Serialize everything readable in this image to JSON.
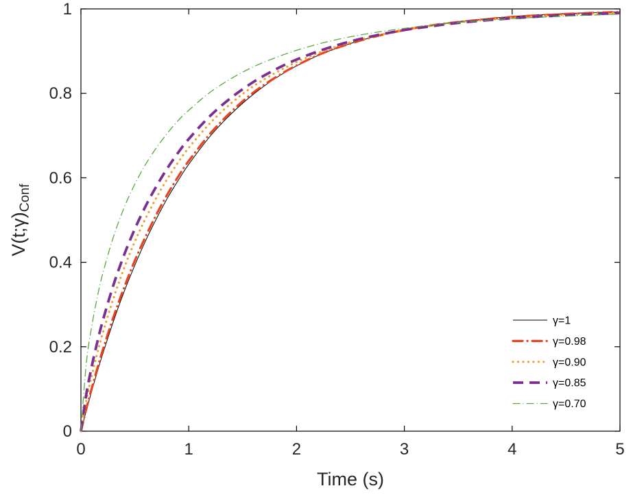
{
  "figure": {
    "background": "#ffffff",
    "xlabel": "Time (s)",
    "ylabel_main": "V(t;γ)",
    "ylabel_sub": "Conf",
    "x_tick_labels": [
      "0",
      "1",
      "2",
      "3",
      "4",
      "5"
    ],
    "y_tick_labels": [
      "0",
      "0.2",
      "0.4",
      "0.6",
      "0.8",
      "1"
    ],
    "axis_color": "#000000",
    "tick_text_color": "#262626"
  },
  "chart_data": {
    "type": "line",
    "title": "",
    "xlabel": "Time (s)",
    "ylabel": "V(t;γ)_Conf",
    "xlim": [
      0,
      5
    ],
    "ylim": [
      0,
      1
    ],
    "x_ticks": [
      0,
      1,
      2,
      3,
      4,
      5
    ],
    "y_ticks": [
      0,
      0.2,
      0.4,
      0.6,
      0.8,
      1
    ],
    "grid": false,
    "legend_position": "bottom-right",
    "x": [
      0,
      0.05,
      0.1,
      0.15,
      0.2,
      0.3,
      0.4,
      0.5,
      0.6,
      0.7,
      0.8,
      0.9,
      1,
      1.2,
      1.4,
      1.6,
      1.8,
      2,
      2.25,
      2.5,
      2.75,
      3,
      3.25,
      3.5,
      4,
      4.5,
      5
    ],
    "series": [
      {
        "name": "γ=1",
        "gamma": 1,
        "color": "#000000",
        "style": "solid",
        "width": 1,
        "values": [
          0,
          0.049,
          0.095,
          0.139,
          0.181,
          0.259,
          0.33,
          0.393,
          0.451,
          0.503,
          0.551,
          0.593,
          0.632,
          0.699,
          0.753,
          0.798,
          0.835,
          0.865,
          0.895,
          0.918,
          0.936,
          0.95,
          0.961,
          0.97,
          0.982,
          0.989,
          0.993
        ]
      },
      {
        "name": "γ=0.98",
        "gamma": 0.98,
        "color": "#e8431e",
        "style": "dash-dot",
        "width": 3.2,
        "values": [
          0,
          0.053,
          0.101,
          0.147,
          0.19,
          0.269,
          0.34,
          0.404,
          0.461,
          0.513,
          0.56,
          0.602,
          0.64,
          0.705,
          0.758,
          0.802,
          0.837,
          0.866,
          0.896,
          0.918,
          0.936,
          0.95,
          0.961,
          0.969,
          0.981,
          0.988,
          0.993
        ]
      },
      {
        "name": "γ=0.90",
        "gamma": 0.9,
        "color": "#f0a030",
        "style": "dotted",
        "width": 3.2,
        "values": [
          0,
          0.072,
          0.131,
          0.183,
          0.23,
          0.313,
          0.386,
          0.449,
          0.504,
          0.553,
          0.597,
          0.636,
          0.671,
          0.73,
          0.778,
          0.817,
          0.848,
          0.874,
          0.9,
          0.921,
          0.937,
          0.95,
          0.96,
          0.968,
          0.979,
          0.986,
          0.991
        ]
      },
      {
        "name": "γ=0.85",
        "gamma": 0.85,
        "color": "#7b2f8e",
        "style": "dashed",
        "width": 3.8,
        "values": [
          0,
          0.088,
          0.153,
          0.209,
          0.259,
          0.345,
          0.417,
          0.479,
          0.533,
          0.58,
          0.622,
          0.659,
          0.692,
          0.747,
          0.791,
          0.827,
          0.856,
          0.88,
          0.904,
          0.923,
          0.938,
          0.95,
          0.959,
          0.967,
          0.978,
          0.985,
          0.99
        ]
      },
      {
        "name": "γ=0.70",
        "gamma": 0.7,
        "color": "#56a83c",
        "style": "dash-dot",
        "width": 1.3,
        "values": [
          0,
          0.161,
          0.248,
          0.315,
          0.371,
          0.459,
          0.529,
          0.585,
          0.632,
          0.671,
          0.705,
          0.735,
          0.76,
          0.803,
          0.836,
          0.863,
          0.884,
          0.902,
          0.92,
          0.934,
          0.945,
          0.954,
          0.962,
          0.968,
          0.977,
          0.983,
          0.988
        ]
      }
    ]
  }
}
